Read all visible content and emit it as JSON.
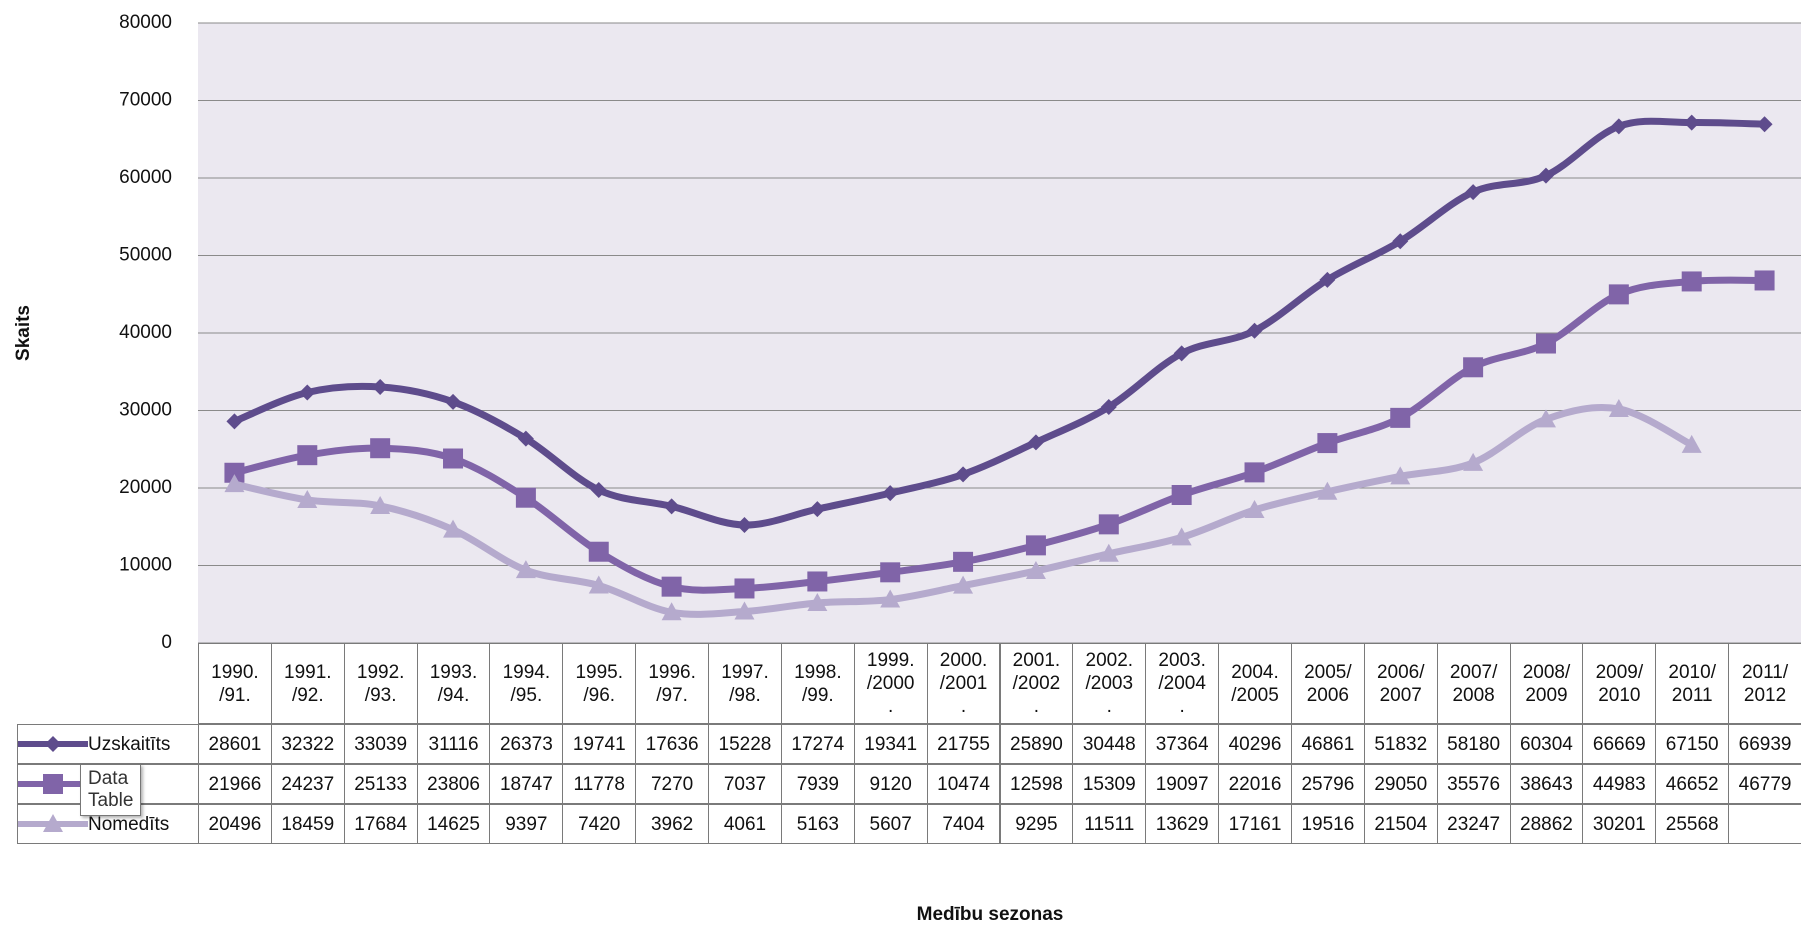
{
  "chart_data": {
    "type": "line",
    "y_label": "Skaits",
    "x_label": "Medību sezonas",
    "categories": [
      "1990.\n/91.",
      "1991.\n/92.",
      "1992.\n/93.",
      "1993.\n/94.",
      "1994.\n/95.",
      "1995.\n/96.",
      "1996.\n/97.",
      "1997.\n/98.",
      "1998.\n/99.",
      "1999.\n/2000\n.",
      "2000.\n/2001\n.",
      "2001.\n/2002\n.",
      "2002.\n/2003\n.",
      "2003.\n/2004\n.",
      "2004.\n/2005",
      "2005/\n2006",
      "2006/\n2007",
      "2007/\n2008",
      "2008/\n2009",
      "2009/\n2010",
      "2010/\n2011",
      "2011/\n2012"
    ],
    "series": [
      {
        "name": "Uzskaitīts",
        "color": "#5e4c8c",
        "marker": "diamond",
        "values": [
          28601,
          32322,
          33039,
          31116,
          26373,
          19741,
          17636,
          15228,
          17274,
          19341,
          21755,
          25890,
          30448,
          37364,
          40296,
          46861,
          51832,
          58180,
          60304,
          66669,
          67150,
          66939
        ]
      },
      {
        "name": null,
        "color": "#8064a8",
        "marker": "square",
        "values": [
          21966,
          24237,
          25133,
          23806,
          18747,
          11778,
          7270,
          7037,
          7939,
          9120,
          10474,
          12598,
          15309,
          19097,
          22016,
          25796,
          29050,
          35576,
          38643,
          44983,
          46652,
          46779
        ]
      },
      {
        "name": "Nomedīts",
        "color": "#b5aacd",
        "marker": "triangle",
        "values": [
          20496,
          18459,
          17684,
          14625,
          9397,
          7420,
          3962,
          4061,
          5163,
          5607,
          7404,
          9295,
          11511,
          13629,
          17161,
          19516,
          21504,
          23247,
          28862,
          30201,
          25568,
          null
        ]
      }
    ],
    "ylim": [
      0,
      80000
    ],
    "yticks": [
      0,
      10000,
      20000,
      30000,
      40000,
      50000,
      60000,
      70000,
      80000
    ],
    "grid": true,
    "tooltip": "Data Table"
  }
}
